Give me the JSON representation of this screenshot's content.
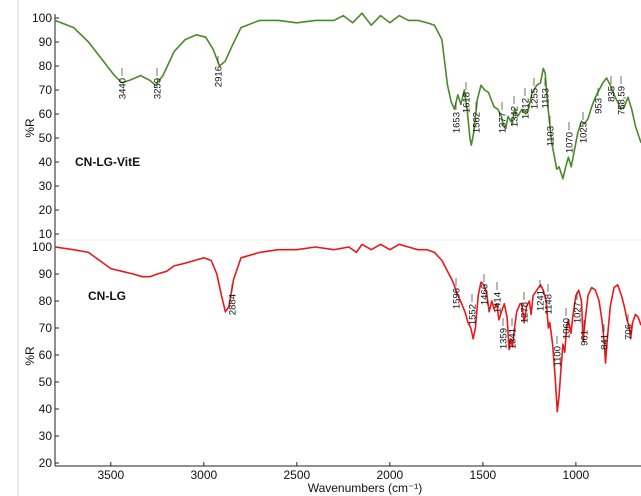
{
  "chart_data": [
    {
      "type": "line",
      "title": "",
      "series_label": "CN-LG-VitE",
      "color": "#4a8a2a",
      "xlabel": "Wavenumbers (cm⁻¹)",
      "ylabel": "%R",
      "xlim": [
        3800,
        650
      ],
      "ylim": [
        10,
        100
      ],
      "x_reversed": true,
      "y_ticks": [
        "100",
        "90",
        "80",
        "70",
        "60",
        "50",
        "40",
        "30",
        "20",
        "10"
      ],
      "points": [
        [
          3800,
          99
        ],
        [
          3700,
          96
        ],
        [
          3620,
          90
        ],
        [
          3540,
          82
        ],
        [
          3480,
          76
        ],
        [
          3440,
          73
        ],
        [
          3400,
          74
        ],
        [
          3340,
          76
        ],
        [
          3290,
          74
        ],
        [
          3259,
          72
        ],
        [
          3220,
          76
        ],
        [
          3160,
          86
        ],
        [
          3100,
          91
        ],
        [
          3040,
          93
        ],
        [
          2990,
          92
        ],
        [
          2950,
          87
        ],
        [
          2916,
          80
        ],
        [
          2885,
          82
        ],
        [
          2850,
          88
        ],
        [
          2800,
          96
        ],
        [
          2700,
          99
        ],
        [
          2600,
          99
        ],
        [
          2500,
          98
        ],
        [
          2400,
          99
        ],
        [
          2300,
          99
        ],
        [
          2250,
          101
        ],
        [
          2200,
          98
        ],
        [
          2150,
          102
        ],
        [
          2100,
          97
        ],
        [
          2050,
          101
        ],
        [
          2000,
          98
        ],
        [
          1950,
          101
        ],
        [
          1900,
          99
        ],
        [
          1850,
          99
        ],
        [
          1800,
          98
        ],
        [
          1760,
          97
        ],
        [
          1720,
          91
        ],
        [
          1690,
          72
        ],
        [
          1670,
          65
        ],
        [
          1653,
          62
        ],
        [
          1635,
          68
        ],
        [
          1618,
          64
        ],
        [
          1600,
          70
        ],
        [
          1585,
          62
        ],
        [
          1570,
          50
        ],
        [
          1562,
          47
        ],
        [
          1550,
          52
        ],
        [
          1530,
          66
        ],
        [
          1510,
          72
        ],
        [
          1490,
          70
        ],
        [
          1470,
          69
        ],
        [
          1455,
          66
        ],
        [
          1440,
          63
        ],
        [
          1420,
          62
        ],
        [
          1400,
          59
        ],
        [
          1390,
          55
        ],
        [
          1377,
          54
        ],
        [
          1365,
          59
        ],
        [
          1342,
          56
        ],
        [
          1330,
          62
        ],
        [
          1312,
          59
        ],
        [
          1290,
          62
        ],
        [
          1270,
          60
        ],
        [
          1255,
          62
        ],
        [
          1235,
          69
        ],
        [
          1210,
          72
        ],
        [
          1190,
          73
        ],
        [
          1175,
          79
        ],
        [
          1165,
          77
        ],
        [
          1153,
          65
        ],
        [
          1130,
          48
        ],
        [
          1115,
          42
        ],
        [
          1103,
          37
        ],
        [
          1090,
          38
        ],
        [
          1070,
          33
        ],
        [
          1055,
          38
        ],
        [
          1040,
          42
        ],
        [
          1025,
          38
        ],
        [
          1010,
          44
        ],
        [
          990,
          52
        ],
        [
          970,
          57
        ],
        [
          953,
          56
        ],
        [
          935,
          58
        ],
        [
          915,
          63
        ],
        [
          895,
          67
        ],
        [
          875,
          70
        ],
        [
          855,
          73
        ],
        [
          835,
          75
        ],
        [
          815,
          72
        ],
        [
          795,
          68
        ],
        [
          775,
          65
        ],
        [
          758,
          62
        ],
        [
          740,
          63
        ],
        [
          720,
          67
        ],
        [
          700,
          62
        ],
        [
          680,
          55
        ],
        [
          650,
          48
        ]
      ],
      "peak_labels": [
        "3440",
        "3259",
        "2916",
        "1653",
        "1618",
        "1562",
        "1377",
        "1342",
        "1312",
        "1255",
        "1153",
        "1103",
        "1070",
        "1025",
        "953",
        "835",
        "758,59"
      ]
    },
    {
      "type": "line",
      "title": "",
      "series_label": "CN-LG",
      "color": "#e8191b",
      "xlabel": "Wavenumbers (cm⁻¹)",
      "ylabel": "%R",
      "xlim": [
        3800,
        650
      ],
      "ylim": [
        20,
        100
      ],
      "x_reversed": true,
      "x_ticks": [
        3500,
        3000,
        2500,
        2000,
        1500,
        1000
      ],
      "y_ticks": [
        "100",
        "90",
        "80",
        "70",
        "60",
        "50",
        "40",
        "30",
        "20"
      ],
      "points": [
        [
          3800,
          100
        ],
        [
          3700,
          99
        ],
        [
          3620,
          98
        ],
        [
          3560,
          95
        ],
        [
          3500,
          92
        ],
        [
          3440,
          91
        ],
        [
          3380,
          90
        ],
        [
          3330,
          89
        ],
        [
          3290,
          89
        ],
        [
          3250,
          90
        ],
        [
          3200,
          91
        ],
        [
          3160,
          93
        ],
        [
          3100,
          94
        ],
        [
          3050,
          95
        ],
        [
          3000,
          96
        ],
        [
          2960,
          95
        ],
        [
          2930,
          90
        ],
        [
          2905,
          82
        ],
        [
          2884,
          76
        ],
        [
          2865,
          78
        ],
        [
          2840,
          88
        ],
        [
          2800,
          96
        ],
        [
          2700,
          98
        ],
        [
          2600,
          99
        ],
        [
          2500,
          99
        ],
        [
          2400,
          100
        ],
        [
          2300,
          99
        ],
        [
          2220,
          100
        ],
        [
          2180,
          98
        ],
        [
          2150,
          101
        ],
        [
          2100,
          99
        ],
        [
          2050,
          101
        ],
        [
          2000,
          99
        ],
        [
          1950,
          101
        ],
        [
          1900,
          100
        ],
        [
          1850,
          99
        ],
        [
          1800,
          99
        ],
        [
          1760,
          98
        ],
        [
          1720,
          95
        ],
        [
          1690,
          91
        ],
        [
          1660,
          87
        ],
        [
          1640,
          83
        ],
        [
          1620,
          80
        ],
        [
          1596,
          76
        ],
        [
          1580,
          72
        ],
        [
          1565,
          70
        ],
        [
          1552,
          66
        ],
        [
          1540,
          70
        ],
        [
          1525,
          82
        ],
        [
          1510,
          87
        ],
        [
          1495,
          86
        ],
        [
          1480,
          83
        ],
        [
          1466,
          76
        ],
        [
          1452,
          80
        ],
        [
          1440,
          77
        ],
        [
          1425,
          79
        ],
        [
          1414,
          73
        ],
        [
          1400,
          76
        ],
        [
          1385,
          79
        ],
        [
          1370,
          74
        ],
        [
          1359,
          62
        ],
        [
          1350,
          66
        ],
        [
          1341,
          63
        ],
        [
          1330,
          70
        ],
        [
          1318,
          76
        ],
        [
          1300,
          79
        ],
        [
          1290,
          79
        ],
        [
          1278,
          72
        ],
        [
          1265,
          78
        ],
        [
          1250,
          80
        ],
        [
          1241,
          75
        ],
        [
          1230,
          82
        ],
        [
          1210,
          84
        ],
        [
          1190,
          86
        ],
        [
          1175,
          84
        ],
        [
          1160,
          80
        ],
        [
          1148,
          70
        ],
        [
          1140,
          72
        ],
        [
          1125,
          64
        ],
        [
          1112,
          52
        ],
        [
          1100,
          39
        ],
        [
          1090,
          45
        ],
        [
          1080,
          55
        ],
        [
          1070,
          64
        ],
        [
          1060,
          61
        ],
        [
          1050,
          70
        ],
        [
          1040,
          73
        ],
        [
          1027,
          68
        ],
        [
          1015,
          75
        ],
        [
          1000,
          82
        ],
        [
          985,
          84
        ],
        [
          970,
          80
        ],
        [
          961,
          65
        ],
        [
          950,
          73
        ],
        [
          935,
          82
        ],
        [
          915,
          85
        ],
        [
          895,
          84
        ],
        [
          875,
          80
        ],
        [
          860,
          73
        ],
        [
          848,
          65
        ],
        [
          841,
          57
        ],
        [
          832,
          65
        ],
        [
          815,
          78
        ],
        [
          795,
          85
        ],
        [
          775,
          86
        ],
        [
          755,
          82
        ],
        [
          740,
          78
        ],
        [
          725,
          73
        ],
        [
          712,
          70
        ],
        [
          706,
          66
        ],
        [
          695,
          72
        ],
        [
          680,
          75
        ],
        [
          665,
          74
        ],
        [
          650,
          71
        ]
      ],
      "peak_labels": [
        "1596",
        "1552",
        "1466",
        "1414",
        "1359",
        "1341",
        "1278",
        "1241",
        "1148",
        "1100",
        "1060",
        "1027",
        "961",
        "841",
        "706",
        "2884"
      ]
    }
  ]
}
